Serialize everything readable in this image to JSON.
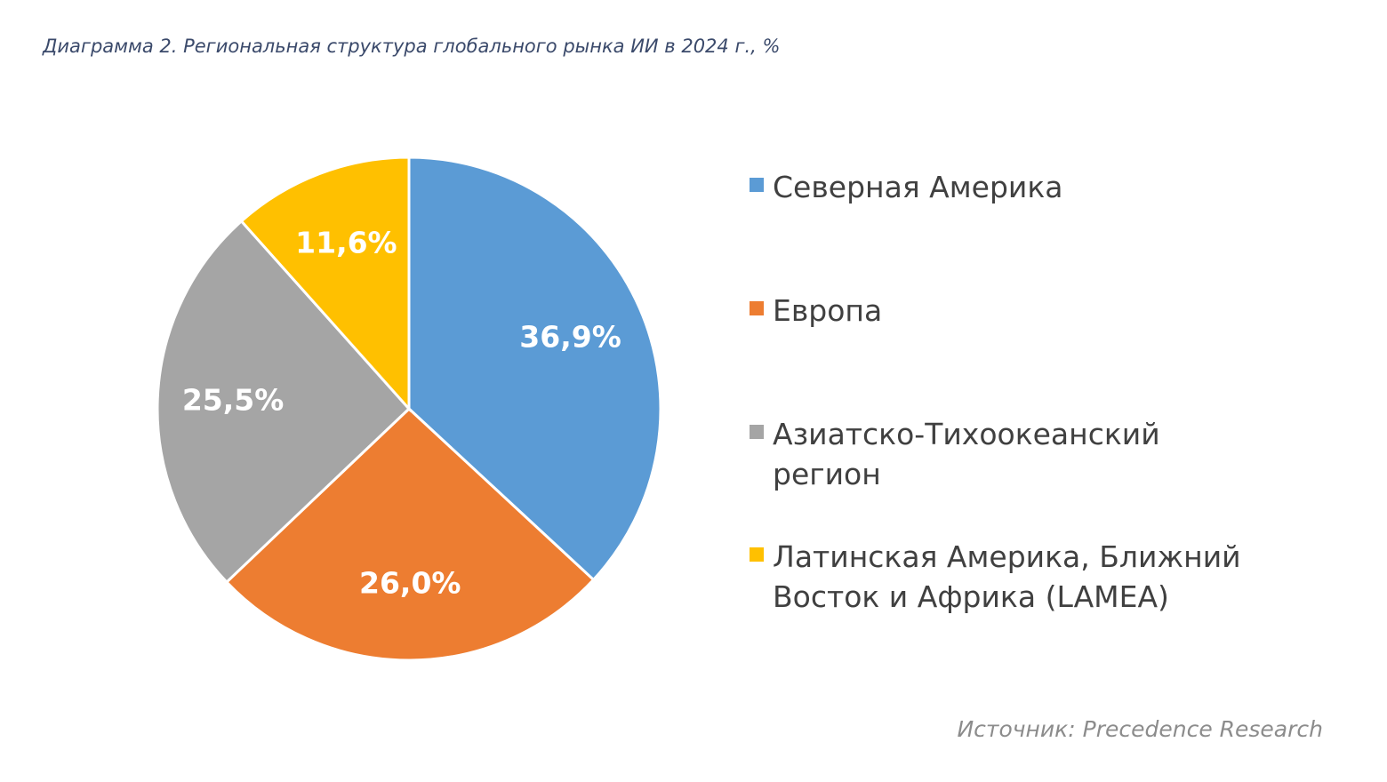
{
  "chart_data": {
    "type": "pie",
    "title": "Диаграмма 2. Региональная структура глобального рынка ИИ в 2024 г., %",
    "categories": [
      "Северная Америка",
      "Европа",
      "Азиатско-Тихоокеанский регион",
      "Латинская Америка, Ближний Восток и Африка (LAMEA)"
    ],
    "values": [
      36.9,
      26.0,
      25.5,
      11.6
    ],
    "value_labels": [
      "36,9%",
      "26,0%",
      "25,5%",
      "11,6%"
    ],
    "colors": [
      "#5b9bd5",
      "#ed7d31",
      "#a5a5a5",
      "#ffc000"
    ],
    "source": "Источник: Precedence Research"
  }
}
